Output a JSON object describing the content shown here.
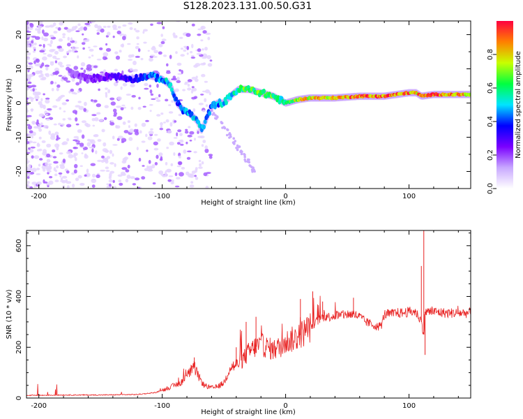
{
  "title": "S128.2023.131.00.50.G31",
  "chart_data": [
    {
      "type": "heatmap",
      "xlabel": "Height of straight line (km)",
      "ylabel": "Frequency (Hz)",
      "xlim": [
        -210,
        150
      ],
      "ylim": [
        -25,
        24
      ],
      "x_ticks": [
        -200,
        -100,
        0,
        100
      ],
      "y_ticks": [
        -20,
        -10,
        0,
        10,
        20
      ],
      "colorbar": {
        "label": "Normalized spectral amplitude",
        "range": [
          0,
          1
        ],
        "ticks": [
          0.0,
          0.2,
          0.4,
          0.6,
          0.8
        ],
        "colormap": [
          "#ffffff",
          "#c8a8ff",
          "#7a00ff",
          "#0000ff",
          "#00e5ff",
          "#00ff40",
          "#c8ff00",
          "#ff8000",
          "#ff0040"
        ]
      },
      "ridge": {
        "x": [
          -175,
          -160,
          -140,
          -125,
          -110,
          -100,
          -93,
          -88,
          -83,
          -78,
          -72,
          -68,
          -60,
          -55,
          -50,
          -45,
          -38,
          -30,
          -20,
          -10,
          -5,
          0,
          10,
          20,
          40,
          60,
          80,
          100,
          106,
          110,
          120,
          150
        ],
        "y": [
          9,
          7,
          8,
          7,
          8,
          7,
          5,
          0,
          -2,
          -3,
          -5,
          -8,
          -1,
          0,
          0,
          2,
          4,
          4,
          3,
          2,
          1,
          0,
          1,
          1.5,
          1.5,
          2,
          2,
          3,
          3,
          2,
          2.5,
          2.5
        ],
        "amplitude": [
          0.2,
          0.25,
          0.3,
          0.35,
          0.45,
          0.5,
          0.6,
          0.45,
          0.5,
          0.5,
          0.55,
          0.5,
          0.45,
          0.5,
          0.55,
          0.55,
          0.65,
          0.75,
          0.7,
          0.7,
          0.6,
          0.65,
          0.8,
          0.9,
          0.9,
          0.95,
          1.0,
          0.95,
          0.9,
          0.95,
          1.0,
          0.9
        ]
      }
    },
    {
      "type": "line",
      "xlabel": "Height of straight line (km)",
      "ylabel": "SNR (10 * v/v)",
      "xlim": [
        -210,
        150
      ],
      "ylim": [
        0,
        660
      ],
      "x_ticks": [
        -200,
        -100,
        0,
        100
      ],
      "y_ticks": [
        0,
        200,
        400,
        600
      ],
      "series": [
        {
          "color": "#e82020",
          "x": [
            -210,
            -180,
            -150,
            -120,
            -105,
            -95,
            -85,
            -78,
            -74,
            -70,
            -66,
            -60,
            -55,
            -50,
            -45,
            -40,
            -35,
            -30,
            -25,
            -20,
            -15,
            -10,
            -5,
            0,
            5,
            10,
            15,
            20,
            25,
            30,
            35,
            40,
            45,
            50,
            55,
            60,
            65,
            70,
            75,
            78,
            80,
            85,
            90,
            95,
            100,
            105,
            108,
            110,
            112,
            113,
            115,
            120,
            130,
            140,
            150
          ],
          "y": [
            10,
            12,
            12,
            14,
            22,
            40,
            60,
            100,
            120,
            80,
            50,
            40,
            45,
            60,
            120,
            130,
            150,
            180,
            200,
            210,
            200,
            190,
            200,
            220,
            230,
            240,
            260,
            280,
            300,
            320,
            320,
            325,
            325,
            330,
            330,
            320,
            300,
            290,
            280,
            290,
            330,
            330,
            335,
            335,
            340,
            340,
            320,
            300,
            250,
            340,
            340,
            340,
            335,
            335,
            335
          ]
        }
      ],
      "spikes": [
        {
          "x": -74,
          "y": 160
        },
        {
          "x": -40,
          "y": 200
        },
        {
          "x": -32,
          "y": 300
        },
        {
          "x": -24,
          "y": 320
        },
        {
          "x": 12,
          "y": 390
        },
        {
          "x": 22,
          "y": 420
        },
        {
          "x": 30,
          "y": 380
        },
        {
          "x": 55,
          "y": 395
        },
        {
          "x": 110,
          "y": 520
        },
        {
          "x": 112,
          "y": 660
        },
        {
          "x": 113,
          "y": 170
        }
      ]
    }
  ]
}
